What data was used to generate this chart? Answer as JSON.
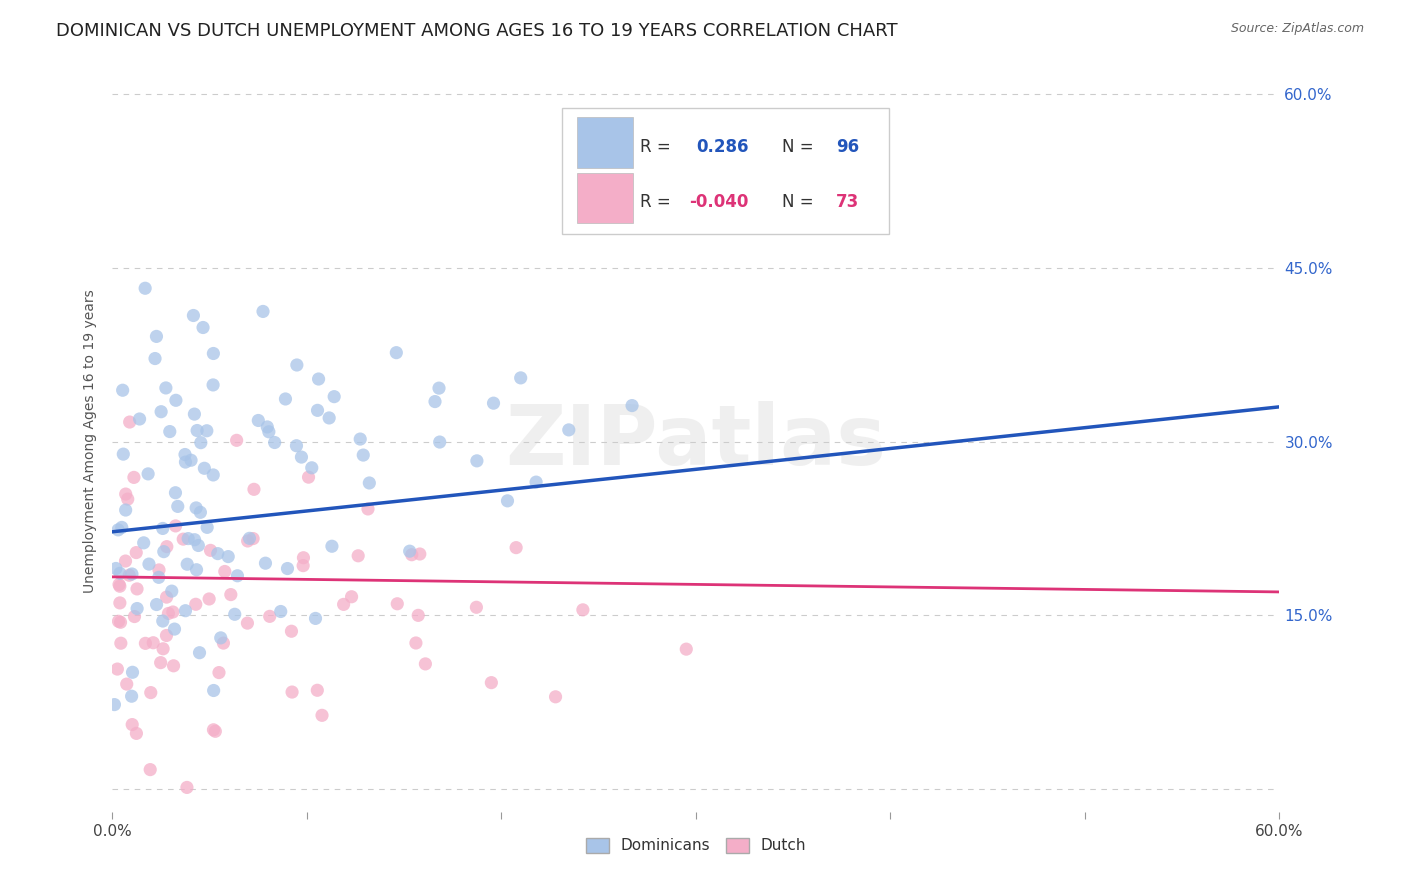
{
  "title": "DOMINICAN VS DUTCH UNEMPLOYMENT AMONG AGES 16 TO 19 YEARS CORRELATION CHART",
  "source": "Source: ZipAtlas.com",
  "ylabel": "Unemployment Among Ages 16 to 19 years",
  "xlim": [
    0.0,
    0.6
  ],
  "ylim": [
    -0.02,
    0.62
  ],
  "dominican_color": "#a8c4e8",
  "dutch_color": "#f4aec8",
  "dominican_line_color": "#2255bb",
  "dutch_line_color": "#dd3377",
  "R_dominican": 0.286,
  "N_dominican": 96,
  "R_dutch": -0.04,
  "N_dutch": 73,
  "background_color": "#ffffff",
  "grid_color": "#cccccc",
  "watermark": "ZIPatlas",
  "title_fontsize": 13,
  "axis_fontsize": 11,
  "legend_fontsize": 12,
  "dom_line_y0": 0.222,
  "dom_line_y1": 0.33,
  "dutch_line_y0": 0.183,
  "dutch_line_y1": 0.17
}
